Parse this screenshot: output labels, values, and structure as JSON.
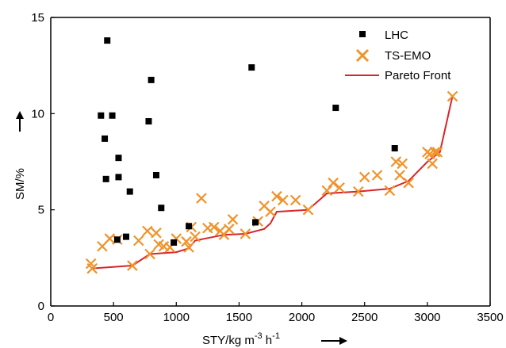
{
  "chart_data": {
    "type": "scatter",
    "xlabel_parts": [
      "STY/kg m",
      "-3",
      " h",
      "-1"
    ],
    "ylabel": "SM/%",
    "xlim": [
      0,
      3500
    ],
    "ylim": [
      0,
      15
    ],
    "x_ticks": [
      0,
      500,
      1000,
      1500,
      2000,
      2500,
      3000,
      3500
    ],
    "y_ticks": [
      0,
      5,
      10,
      15
    ],
    "grid": false,
    "legend_position": "top-right",
    "colors": {
      "lhc": "#000000",
      "tsemo": "#f0932b",
      "pareto": "#d7262b",
      "axis": "#000000"
    },
    "series": [
      {
        "name": "LHC",
        "type": "scatter",
        "marker": "square",
        "points": [
          [
            450,
            13.8
          ],
          [
            800,
            11.75
          ],
          [
            1600,
            12.4
          ],
          [
            2270,
            10.3
          ],
          [
            400,
            9.9
          ],
          [
            490,
            9.9
          ],
          [
            780,
            9.6
          ],
          [
            430,
            8.7
          ],
          [
            540,
            7.7
          ],
          [
            2740,
            8.2
          ],
          [
            440,
            6.6
          ],
          [
            540,
            6.7
          ],
          [
            840,
            6.8
          ],
          [
            630,
            5.95
          ],
          [
            880,
            5.1
          ],
          [
            1630,
            4.35
          ],
          [
            1100,
            4.15
          ],
          [
            530,
            3.45
          ],
          [
            600,
            3.6
          ],
          [
            980,
            3.3
          ]
        ]
      },
      {
        "name": "TS-EMO",
        "type": "scatter",
        "marker": "x",
        "points": [
          [
            320,
            2.2
          ],
          [
            330,
            1.95
          ],
          [
            410,
            3.1
          ],
          [
            470,
            3.5
          ],
          [
            530,
            3.45
          ],
          [
            650,
            2.1
          ],
          [
            700,
            3.4
          ],
          [
            770,
            3.9
          ],
          [
            790,
            2.7
          ],
          [
            840,
            3.8
          ],
          [
            860,
            3.2
          ],
          [
            900,
            3.1
          ],
          [
            950,
            3.05
          ],
          [
            1000,
            3.5
          ],
          [
            1080,
            3.35
          ],
          [
            1100,
            3.05
          ],
          [
            1120,
            4.1
          ],
          [
            1150,
            3.6
          ],
          [
            1200,
            5.6
          ],
          [
            1250,
            4.05
          ],
          [
            1300,
            4.1
          ],
          [
            1350,
            3.9
          ],
          [
            1380,
            3.7
          ],
          [
            1420,
            4.0
          ],
          [
            1450,
            4.5
          ],
          [
            1550,
            3.75
          ],
          [
            1650,
            4.4
          ],
          [
            1700,
            5.2
          ],
          [
            1750,
            4.9
          ],
          [
            1800,
            5.7
          ],
          [
            1850,
            5.5
          ],
          [
            1950,
            5.5
          ],
          [
            2050,
            5.0
          ],
          [
            2200,
            6.0
          ],
          [
            2250,
            6.4
          ],
          [
            2300,
            6.15
          ],
          [
            2450,
            5.95
          ],
          [
            2500,
            6.7
          ],
          [
            2600,
            6.8
          ],
          [
            2700,
            6.0
          ],
          [
            2750,
            7.5
          ],
          [
            2780,
            6.8
          ],
          [
            2800,
            7.4
          ],
          [
            2850,
            6.4
          ],
          [
            3000,
            8.0
          ],
          [
            3020,
            7.9
          ],
          [
            3040,
            7.4
          ],
          [
            3060,
            8.0
          ],
          [
            3080,
            8.0
          ],
          [
            3200,
            10.9
          ]
        ]
      },
      {
        "name": "Pareto Front",
        "type": "line",
        "points": [
          [
            320,
            1.95
          ],
          [
            650,
            2.1
          ],
          [
            790,
            2.7
          ],
          [
            1000,
            2.8
          ],
          [
            1100,
            3.0
          ],
          [
            1150,
            3.4
          ],
          [
            1380,
            3.7
          ],
          [
            1550,
            3.75
          ],
          [
            1700,
            4.0
          ],
          [
            1750,
            4.3
          ],
          [
            1800,
            4.9
          ],
          [
            2050,
            5.0
          ],
          [
            2200,
            5.85
          ],
          [
            2450,
            5.95
          ],
          [
            2700,
            6.1
          ],
          [
            2850,
            6.5
          ],
          [
            3000,
            7.5
          ],
          [
            3100,
            8.0
          ],
          [
            3200,
            10.9
          ]
        ]
      }
    ]
  }
}
